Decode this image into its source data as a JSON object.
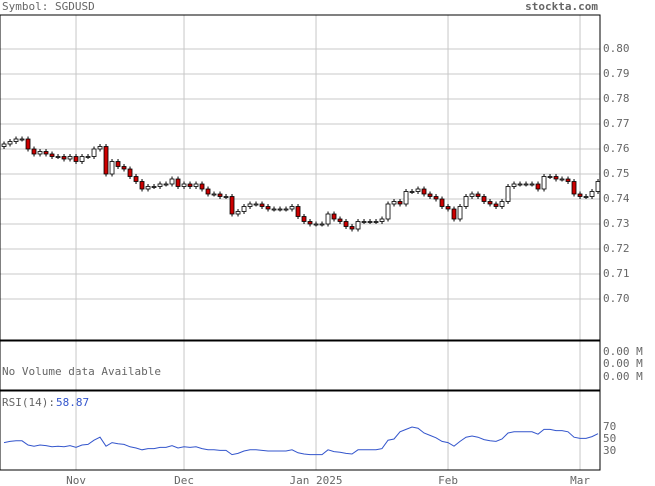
{
  "chart_data": [
    {
      "type": "candlestick",
      "title": "Symbol: SGDUSD",
      "source": "stockta.com",
      "open": [
        0.761,
        0.762,
        0.763,
        0.764,
        0.764,
        0.76,
        0.758,
        0.759,
        0.758,
        0.757,
        0.757,
        0.756,
        0.757,
        0.755,
        0.757,
        0.757,
        0.76,
        0.761,
        0.75,
        0.755,
        0.753,
        0.752,
        0.749,
        0.747,
        0.744,
        0.745,
        0.745,
        0.746,
        0.746,
        0.748,
        0.745,
        0.746,
        0.745,
        0.746,
        0.744,
        0.742,
        0.742,
        0.741,
        0.741,
        0.734,
        0.735,
        0.737,
        0.738,
        0.738,
        0.737,
        0.736,
        0.736,
        0.736,
        0.736,
        0.737,
        0.733,
        0.731,
        0.73,
        0.73,
        0.73,
        0.734,
        0.732,
        0.731,
        0.729,
        0.728,
        0.731,
        0.731,
        0.731,
        0.731,
        0.732,
        0.738,
        0.739,
        0.738,
        0.743,
        0.743,
        0.744,
        0.742,
        0.741,
        0.74,
        0.737,
        0.736,
        0.732,
        0.737,
        0.741,
        0.742,
        0.741,
        0.739,
        0.738,
        0.737,
        0.739,
        0.745,
        0.746,
        0.746,
        0.746,
        0.746,
        0.744,
        0.749,
        0.749,
        0.748,
        0.748,
        0.747,
        0.742,
        0.741,
        0.741,
        0.743
      ],
      "high": [
        0.763,
        0.764,
        0.765,
        0.765,
        0.765,
        0.761,
        0.76,
        0.76,
        0.759,
        0.758,
        0.758,
        0.758,
        0.758,
        0.758,
        0.758,
        0.761,
        0.762,
        0.762,
        0.756,
        0.756,
        0.754,
        0.753,
        0.75,
        0.748,
        0.746,
        0.746,
        0.747,
        0.747,
        0.749,
        0.749,
        0.747,
        0.747,
        0.747,
        0.747,
        0.745,
        0.743,
        0.743,
        0.742,
        0.742,
        0.736,
        0.738,
        0.739,
        0.739,
        0.739,
        0.738,
        0.737,
        0.737,
        0.737,
        0.738,
        0.738,
        0.734,
        0.732,
        0.731,
        0.731,
        0.735,
        0.735,
        0.733,
        0.732,
        0.73,
        0.732,
        0.732,
        0.732,
        0.732,
        0.733,
        0.739,
        0.74,
        0.74,
        0.744,
        0.744,
        0.745,
        0.745,
        0.743,
        0.742,
        0.741,
        0.738,
        0.737,
        0.738,
        0.742,
        0.743,
        0.743,
        0.742,
        0.74,
        0.739,
        0.74,
        0.746,
        0.747,
        0.747,
        0.747,
        0.747,
        0.747,
        0.75,
        0.75,
        0.75,
        0.749,
        0.749,
        0.748,
        0.743,
        0.742,
        0.744,
        0.748
      ],
      "low": [
        0.76,
        0.761,
        0.762,
        0.763,
        0.759,
        0.757,
        0.757,
        0.757,
        0.756,
        0.756,
        0.755,
        0.755,
        0.754,
        0.754,
        0.756,
        0.756,
        0.759,
        0.749,
        0.749,
        0.752,
        0.751,
        0.748,
        0.746,
        0.743,
        0.743,
        0.744,
        0.744,
        0.745,
        0.745,
        0.744,
        0.744,
        0.744,
        0.744,
        0.743,
        0.741,
        0.741,
        0.74,
        0.74,
        0.733,
        0.733,
        0.734,
        0.736,
        0.737,
        0.736,
        0.735,
        0.735,
        0.735,
        0.735,
        0.735,
        0.732,
        0.73,
        0.729,
        0.729,
        0.729,
        0.729,
        0.731,
        0.73,
        0.728,
        0.727,
        0.727,
        0.73,
        0.73,
        0.73,
        0.73,
        0.731,
        0.737,
        0.737,
        0.737,
        0.742,
        0.742,
        0.741,
        0.74,
        0.739,
        0.736,
        0.735,
        0.731,
        0.731,
        0.736,
        0.74,
        0.74,
        0.738,
        0.737,
        0.736,
        0.736,
        0.738,
        0.744,
        0.745,
        0.745,
        0.745,
        0.743,
        0.743,
        0.748,
        0.747,
        0.747,
        0.746,
        0.741,
        0.74,
        0.74,
        0.74,
        0.742
      ],
      "close": [
        0.762,
        0.763,
        0.764,
        0.764,
        0.76,
        0.758,
        0.759,
        0.758,
        0.757,
        0.757,
        0.756,
        0.757,
        0.755,
        0.757,
        0.757,
        0.76,
        0.761,
        0.75,
        0.755,
        0.753,
        0.752,
        0.749,
        0.747,
        0.744,
        0.745,
        0.745,
        0.746,
        0.746,
        0.748,
        0.745,
        0.746,
        0.745,
        0.746,
        0.744,
        0.742,
        0.742,
        0.741,
        0.741,
        0.734,
        0.735,
        0.737,
        0.738,
        0.738,
        0.737,
        0.736,
        0.736,
        0.736,
        0.736,
        0.737,
        0.733,
        0.731,
        0.73,
        0.73,
        0.73,
        0.734,
        0.732,
        0.731,
        0.729,
        0.728,
        0.731,
        0.731,
        0.731,
        0.731,
        0.732,
        0.738,
        0.739,
        0.738,
        0.743,
        0.743,
        0.744,
        0.742,
        0.741,
        0.74,
        0.737,
        0.736,
        0.732,
        0.737,
        0.741,
        0.742,
        0.741,
        0.739,
        0.738,
        0.737,
        0.739,
        0.745,
        0.746,
        0.746,
        0.746,
        0.746,
        0.744,
        0.749,
        0.749,
        0.748,
        0.748,
        0.747,
        0.742,
        0.741,
        0.741,
        0.743,
        0.747
      ],
      "up_color": "#ffffff",
      "down_color": "#cc0000",
      "xlim": [
        -0.67,
        99.33
      ],
      "xticks": [
        {
          "value": 12,
          "label": "Nov"
        },
        {
          "value": 30,
          "label": "Dec"
        },
        {
          "value": 52,
          "label": "Jan 2025"
        },
        {
          "value": 74,
          "label": "Feb"
        },
        {
          "value": 96,
          "label": "Mar"
        }
      ],
      "ylim": [
        0.6836,
        0.8136
      ],
      "yticks": [
        {
          "value": 0.7,
          "label": "0.70"
        },
        0.71,
        0.72,
        0.73,
        0.74,
        0.75,
        0.76,
        0.77,
        0.78,
        0.79,
        {
          "value": 0.8,
          "label": "0.80"
        }
      ],
      "grid": true
    },
    {
      "type": "volume",
      "message": "No Volume data Available",
      "tick_labels": [
        "0.00 M",
        "0.00 M",
        "0.00 M"
      ]
    },
    {
      "type": "line",
      "label": "RSI(14):",
      "color": "#3355cc",
      "values": [
        44,
        46,
        47,
        47,
        40,
        38,
        40,
        39,
        37,
        38,
        37,
        39,
        36,
        40,
        41,
        48,
        53,
        38,
        44,
        42,
        41,
        37,
        35,
        32,
        34,
        34,
        36,
        36,
        39,
        35,
        37,
        36,
        37,
        34,
        32,
        32,
        31,
        31,
        24,
        26,
        30,
        32,
        32,
        31,
        30,
        30,
        30,
        30,
        32,
        27,
        25,
        24,
        24,
        24,
        32,
        29,
        28,
        26,
        25,
        32,
        32,
        32,
        32,
        34,
        48,
        50,
        62,
        66,
        70,
        68,
        60,
        56,
        52,
        46,
        44,
        38,
        46,
        53,
        55,
        53,
        49,
        47,
        46,
        50,
        60,
        62,
        62,
        62,
        62,
        58,
        66,
        66,
        64,
        64,
        62,
        53,
        51,
        51,
        54,
        58.87
      ],
      "ylim": [
        0,
        130
      ],
      "yticks": [
        30,
        50,
        70
      ]
    }
  ]
}
